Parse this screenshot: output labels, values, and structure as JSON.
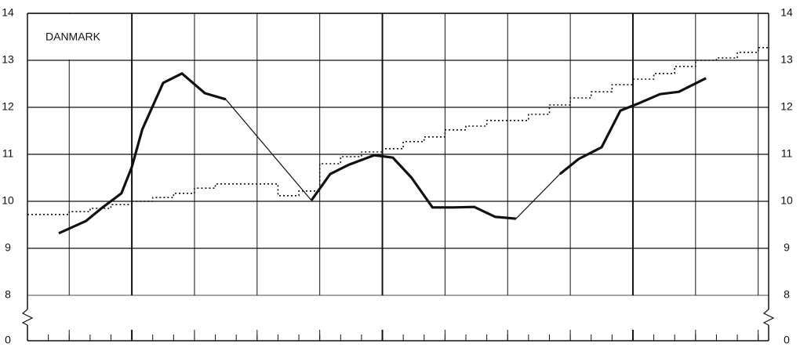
{
  "chart_data": {
    "type": "line",
    "title": "DANMARK",
    "xlim": [
      1,
      36.5
    ],
    "xgrid": [
      3,
      6,
      9,
      12,
      15,
      18,
      21,
      24,
      27,
      30,
      33,
      36
    ],
    "xgrid_bold": [
      6,
      18,
      30
    ],
    "xticks": [
      1,
      2,
      3,
      4,
      5,
      6,
      7,
      8,
      9,
      10,
      11,
      12,
      13,
      14,
      15,
      16,
      17,
      18,
      19,
      20,
      21,
      22,
      23,
      24,
      25,
      26,
      27,
      28,
      29,
      30,
      31,
      32,
      33,
      34,
      35,
      36
    ],
    "ylim": [
      0,
      14
    ],
    "axis_break": [
      0,
      8
    ],
    "yticks": [
      0,
      8,
      9,
      10,
      11,
      12,
      13,
      14
    ],
    "grid": true,
    "series": [
      {
        "style": "bold",
        "color": "#111",
        "x": [
          2.5,
          3.8,
          4.6,
          5.5,
          6.0,
          6.5,
          7.5,
          8.4,
          9.5,
          10.5,
          null,
          14.6,
          15.5,
          16.4,
          17.6,
          18.5,
          19.4,
          20.4,
          21.4,
          22.4,
          23.4,
          24.4,
          null,
          26.5,
          27.4,
          28.5,
          29.4,
          30.2,
          31.3,
          32.2,
          33.5
        ],
        "values": [
          9.32,
          9.58,
          9.87,
          10.17,
          10.73,
          11.53,
          12.52,
          12.72,
          12.3,
          12.17,
          null,
          10.02,
          10.58,
          10.78,
          10.98,
          10.93,
          10.5,
          9.87,
          9.87,
          9.88,
          9.67,
          9.63,
          null,
          10.58,
          10.9,
          11.15,
          11.93,
          12.07,
          12.28,
          12.33,
          12.62
        ]
      },
      {
        "style": "thin",
        "color": "#111",
        "x": [
          10.5,
          14.6,
          null,
          24.4,
          26.5
        ],
        "values": [
          12.17,
          10.02,
          null,
          9.63,
          10.58
        ]
      },
      {
        "style": "dotted-step",
        "color": "#111",
        "x": [
          1,
          2,
          3,
          4,
          5,
          6,
          7,
          8,
          9,
          10,
          11,
          12,
          13,
          14,
          15,
          16,
          17,
          18,
          19,
          20,
          21,
          22,
          23,
          24,
          25,
          26,
          27,
          28,
          29,
          30,
          31,
          32,
          33,
          34,
          35,
          36
        ],
        "values": [
          9.72,
          9.72,
          9.78,
          9.85,
          9.93,
          10.0,
          10.08,
          10.17,
          10.28,
          10.37,
          10.37,
          10.37,
          10.12,
          10.22,
          10.8,
          10.95,
          11.05,
          11.12,
          11.27,
          11.37,
          11.52,
          11.6,
          11.72,
          11.72,
          11.85,
          12.05,
          12.2,
          12.33,
          12.48,
          12.6,
          12.72,
          12.87,
          13.0,
          13.05,
          13.17,
          13.27
        ]
      }
    ]
  }
}
